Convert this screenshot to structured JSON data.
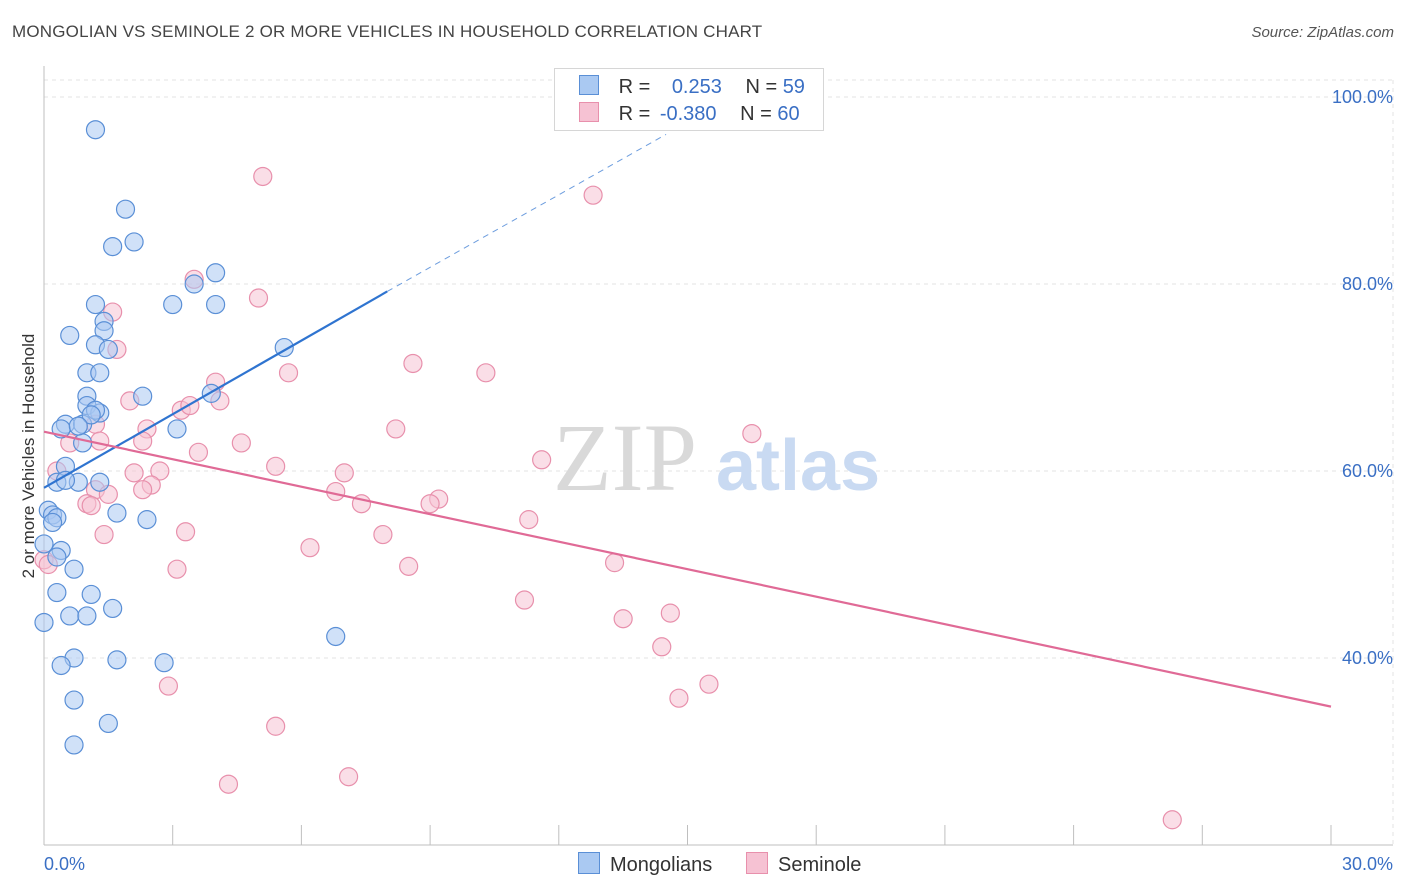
{
  "title": "MONGOLIAN VS SEMINOLE 2 OR MORE VEHICLES IN HOUSEHOLD CORRELATION CHART",
  "source": "Source: ZipAtlas.com",
  "watermark": {
    "zip": "ZIP",
    "atlas": "atlas"
  },
  "legend": {
    "rows": [
      {
        "r_label": "R =",
        "r_value": "0.253",
        "n_label": "N =",
        "n_value": "59"
      },
      {
        "r_label": "R =",
        "r_value": "-0.380",
        "n_label": "N =",
        "n_value": "60"
      }
    ]
  },
  "bottom_legend": {
    "series1": "Mongolians",
    "series2": "Seminole"
  },
  "colors": {
    "blue_fill": "#aac9f2",
    "blue_stroke": "#5a8fd6",
    "blue_line": "#2f74d0",
    "pink_fill": "#f6c2d3",
    "pink_stroke": "#e890ac",
    "pink_line": "#e06a96",
    "axis_text": "#3a6fc4",
    "grid": "#e3e3e3"
  },
  "chart_data": {
    "type": "scatter",
    "title": "MONGOLIAN VS SEMINOLE 2 OR MORE VEHICLES IN HOUSEHOLD CORRELATION CHART",
    "xlabel": "",
    "ylabel": "2 or more Vehicles in Household",
    "xlim": [
      0,
      30
    ],
    "ylim": [
      20,
      100
    ],
    "x_tick_labels": [
      "0.0%",
      "30.0%"
    ],
    "y_ticks": [
      {
        "value": 40,
        "label": "40.0%"
      },
      {
        "value": 60,
        "label": "60.0%"
      },
      {
        "value": 80,
        "label": "80.0%"
      },
      {
        "value": 100,
        "label": "100.0%"
      }
    ],
    "series": [
      {
        "name": "Mongolians",
        "r": 0.253,
        "n": 59,
        "trend": {
          "x": [
            0,
            8
          ],
          "y": [
            58.2,
            79.2
          ],
          "dashed_to": [
            14.5,
            96.0
          ]
        },
        "points": [
          [
            1.2,
            96.5
          ],
          [
            1.9,
            88.0
          ],
          [
            1.6,
            84.0
          ],
          [
            2.1,
            84.5
          ],
          [
            4.0,
            81.2
          ],
          [
            3.5,
            80.0
          ],
          [
            1.2,
            77.8
          ],
          [
            3.0,
            77.8
          ],
          [
            4.0,
            77.8
          ],
          [
            1.4,
            76.0
          ],
          [
            1.4,
            75.0
          ],
          [
            0.6,
            74.5
          ],
          [
            1.2,
            73.5
          ],
          [
            1.5,
            73.0
          ],
          [
            5.6,
            73.2
          ],
          [
            1.0,
            70.5
          ],
          [
            1.3,
            70.5
          ],
          [
            1.0,
            68.0
          ],
          [
            2.3,
            68.0
          ],
          [
            3.9,
            68.3
          ],
          [
            1.0,
            67.0
          ],
          [
            1.3,
            66.2
          ],
          [
            1.2,
            66.5
          ],
          [
            0.5,
            65.0
          ],
          [
            0.9,
            65.0
          ],
          [
            0.4,
            64.5
          ],
          [
            3.1,
            64.5
          ],
          [
            0.9,
            63.0
          ],
          [
            0.5,
            60.5
          ],
          [
            0.3,
            58.8
          ],
          [
            0.8,
            58.8
          ],
          [
            1.3,
            58.8
          ],
          [
            0.1,
            55.8
          ],
          [
            0.2,
            55.3
          ],
          [
            1.7,
            55.5
          ],
          [
            0.3,
            55.0
          ],
          [
            2.4,
            54.8
          ],
          [
            0.0,
            52.2
          ],
          [
            0.4,
            51.5
          ],
          [
            0.3,
            50.8
          ],
          [
            0.7,
            49.5
          ],
          [
            0.3,
            47.0
          ],
          [
            1.1,
            46.8
          ],
          [
            1.6,
            45.3
          ],
          [
            0.6,
            44.5
          ],
          [
            1.0,
            44.5
          ],
          [
            0.0,
            43.8
          ],
          [
            6.8,
            42.3
          ],
          [
            0.7,
            40.0
          ],
          [
            1.7,
            39.8
          ],
          [
            2.8,
            39.5
          ],
          [
            0.4,
            39.2
          ],
          [
            0.7,
            35.5
          ],
          [
            1.5,
            33.0
          ],
          [
            0.7,
            30.7
          ],
          [
            0.2,
            54.5
          ],
          [
            1.1,
            66.0
          ],
          [
            0.8,
            64.8
          ],
          [
            0.5,
            59.0
          ]
        ]
      },
      {
        "name": "Seminole",
        "r": -0.38,
        "n": 60,
        "trend": {
          "x": [
            0,
            30
          ],
          "y": [
            64.2,
            34.8
          ]
        },
        "points": [
          [
            5.1,
            91.5
          ],
          [
            12.8,
            89.5
          ],
          [
            3.5,
            80.5
          ],
          [
            5.0,
            78.5
          ],
          [
            1.6,
            77.0
          ],
          [
            1.7,
            73.0
          ],
          [
            8.6,
            71.5
          ],
          [
            5.7,
            70.5
          ],
          [
            10.3,
            70.5
          ],
          [
            4.0,
            69.5
          ],
          [
            4.1,
            67.5
          ],
          [
            2.0,
            67.5
          ],
          [
            3.2,
            66.5
          ],
          [
            3.4,
            67.0
          ],
          [
            8.2,
            64.5
          ],
          [
            2.4,
            64.5
          ],
          [
            16.5,
            64.0
          ],
          [
            1.2,
            65.0
          ],
          [
            1.3,
            63.2
          ],
          [
            2.3,
            63.2
          ],
          [
            4.6,
            63.0
          ],
          [
            0.6,
            63.0
          ],
          [
            3.6,
            62.0
          ],
          [
            11.6,
            61.2
          ],
          [
            5.4,
            60.5
          ],
          [
            0.3,
            60.0
          ],
          [
            7.0,
            59.8
          ],
          [
            2.1,
            59.8
          ],
          [
            2.7,
            60.0
          ],
          [
            2.5,
            58.5
          ],
          [
            2.3,
            58.0
          ],
          [
            6.8,
            57.8
          ],
          [
            1.2,
            58.0
          ],
          [
            9.2,
            57.0
          ],
          [
            9.0,
            56.5
          ],
          [
            7.4,
            56.5
          ],
          [
            1.0,
            56.5
          ],
          [
            1.1,
            56.3
          ],
          [
            11.3,
            54.8
          ],
          [
            3.3,
            53.5
          ],
          [
            1.4,
            53.2
          ],
          [
            7.9,
            53.2
          ],
          [
            6.2,
            51.8
          ],
          [
            0.0,
            50.5
          ],
          [
            13.3,
            50.2
          ],
          [
            8.5,
            49.8
          ],
          [
            3.1,
            49.5
          ],
          [
            11.2,
            46.2
          ],
          [
            14.6,
            44.8
          ],
          [
            13.5,
            44.2
          ],
          [
            14.4,
            41.2
          ],
          [
            2.9,
            37.0
          ],
          [
            15.5,
            37.2
          ],
          [
            14.8,
            35.7
          ],
          [
            5.4,
            32.7
          ],
          [
            7.1,
            27.3
          ],
          [
            4.3,
            26.5
          ],
          [
            26.3,
            22.7
          ],
          [
            0.1,
            50.0
          ],
          [
            1.5,
            57.5
          ]
        ]
      }
    ]
  }
}
